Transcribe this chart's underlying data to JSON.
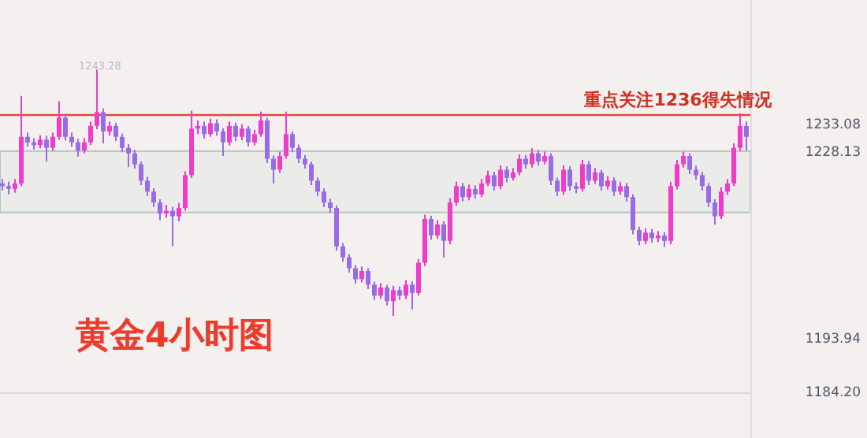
{
  "chart_data": {
    "type": "candlestick",
    "title": "黄金4小时图",
    "annotations": [
      "1243.28",
      "重点关注1236得失情况"
    ],
    "colors": [
      "#9a6be6",
      "#9a6be6",
      "#f03cc8",
      "#f03cc8",
      "#9a6be6",
      "#9a6be6",
      "#f03cc8",
      "#9a6be6",
      "#f03cc8",
      "#f03cc8",
      "#9a6be6",
      "#9a6be6",
      "#9a6be6",
      "#f03cc8",
      "#f03cc8",
      "#f03cc8",
      "#9a6be6",
      "#f03cc8",
      "#9a6be6",
      "#9a6be6",
      "#9a6be6",
      "#9a6be6",
      "#9a6be6",
      "#9a6be6",
      "#9a6be6",
      "#9a6be6",
      "#f03cc8",
      "#9a6be6",
      "#f03cc8",
      "#f03cc8",
      "#f03cc8",
      "#f03cc8",
      "#9a6be6",
      "#f03cc8",
      "#9a6be6",
      "#9a6be6",
      "#f03cc8",
      "#9a6be6",
      "#f03cc8",
      "#9a6be6",
      "#f03cc8",
      "#f03cc8",
      "#9a6be6",
      "#9a6be6",
      "#f03cc8",
      "#f03cc8",
      "#9a6be6",
      "#9a6be6",
      "#9a6be6",
      "#9a6be6",
      "#9a6be6",
      "#9a6be6",
      "#9a6be6",
      "#9a6be6",
      "#9a6be6",
      "#9a6be6",
      "#9a6be6",
      "#f03cc8",
      "#9a6be6",
      "#9a6be6",
      "#f03cc8",
      "#9a6be6",
      "#f03cc8",
      "#9a6be6",
      "#f03cc8",
      "#9a6be6",
      "#f03cc8",
      "#f03cc8",
      "#9a6be6",
      "#f03cc8",
      "#9a6be6",
      "#f03cc8",
      "#f03cc8",
      "#9a6be6",
      "#f03cc8",
      "#9a6be6",
      "#f03cc8",
      "#f03cc8",
      "#9a6be6",
      "#f03cc8",
      "#9a6be6",
      "#f03cc8",
      "#f03cc8",
      "#9a6be6",
      "#f03cc8",
      "#9a6be6",
      "#f03cc8",
      "#9a6be6",
      "#9a6be6",
      "#f03cc8",
      "#9a6be6",
      "#9a6be6",
      "#f03cc8",
      "#9a6be6",
      "#f03cc8",
      "#9a6be6",
      "#f03cc8",
      "#9a6be6",
      "#f03cc8",
      "#9a6be6",
      "#9a6be6",
      "#9a6be6",
      "#f03cc8",
      "#9a6be6",
      "#f03cc8",
      "#9a6be6",
      "#f03cc8",
      "#f03cc8",
      "#f03cc8",
      "#9a6be6",
      "#9a6be6",
      "#9a6be6",
      "#9a6be6",
      "#9a6be6",
      "#f03cc8",
      "#f03cc8",
      "#f03cc8",
      "#f03cc8",
      "#9a6be6"
    ],
    "ylim": [
      1176,
      1256
    ],
    "yticks": [
      1233.08,
      1228.13,
      1193.94,
      {
        "value": 1184.2,
        "label": "1184.20"
      }
    ],
    "ref_lines": [
      {
        "axis": "y",
        "value": 1235,
        "color": "#e04a3a"
      },
      {
        "axis": "y",
        "value": 1184.2,
        "color": "#d8dcea"
      }
    ],
    "bands": [
      {
        "axis": "y",
        "from": 1217.2,
        "to": 1228.4,
        "color": "#dfe7e1"
      }
    ],
    "categories": [
      null,
      null,
      null,
      null,
      null,
      null,
      null,
      null,
      null,
      null,
      null,
      null,
      null,
      null,
      null,
      null,
      null,
      null,
      null,
      null,
      null,
      null,
      null,
      null,
      null,
      null,
      null,
      null,
      null,
      null,
      null,
      null,
      null,
      null,
      null,
      null,
      null,
      null,
      null,
      null,
      null,
      null,
      null,
      null,
      null,
      null,
      null,
      null,
      null,
      null,
      null,
      null,
      null,
      null,
      null,
      null,
      null,
      null,
      null,
      null,
      null,
      null,
      null,
      null,
      null,
      null,
      null,
      null,
      null,
      null,
      null,
      null,
      null,
      null,
      null,
      null,
      null,
      null,
      null,
      null,
      null,
      null,
      null,
      null,
      null,
      null,
      null,
      null,
      null,
      null,
      null,
      null,
      null,
      null,
      null,
      null,
      null,
      null,
      null,
      null,
      null,
      null,
      null,
      null,
      null,
      null,
      null,
      null,
      null,
      null,
      null,
      null,
      null,
      null,
      null,
      null,
      null,
      null,
      null
    ],
    "ohlc": [
      [
        1222.5,
        1223.3,
        1221.2,
        1222
      ],
      [
        1222,
        1222.8,
        1220.5,
        1221.5
      ],
      [
        1221.5,
        1223.3,
        1220.8,
        1222.5
      ],
      [
        1222.5,
        1238.5,
        1222,
        1231
      ],
      [
        1231,
        1231.8,
        1229.2,
        1230
      ],
      [
        1230,
        1230.8,
        1228.7,
        1229.5
      ],
      [
        1229.5,
        1231.3,
        1228.9,
        1230.5
      ],
      [
        1230.5,
        1231.2,
        1226.5,
        1229
      ],
      [
        1229,
        1231.8,
        1228.5,
        1231
      ],
      [
        1231,
        1237.5,
        1230.5,
        1234.5
      ],
      [
        1234.5,
        1235.2,
        1230.3,
        1231
      ],
      [
        1231,
        1231.8,
        1229.2,
        1230
      ],
      [
        1230,
        1230.6,
        1227.4,
        1228.5
      ],
      [
        1228.5,
        1230.8,
        1228,
        1230
      ],
      [
        1230,
        1233.8,
        1229.5,
        1233
      ],
      [
        1233,
        1243.28,
        1232.4,
        1235.5
      ],
      [
        1235.5,
        1236.2,
        1229.8,
        1232
      ],
      [
        1232,
        1233.8,
        1231.2,
        1233
      ],
      [
        1233,
        1233.6,
        1230.2,
        1231
      ],
      [
        1231,
        1231.6,
        1228.2,
        1229
      ],
      [
        1229,
        1229.7,
        1225.5,
        1228
      ],
      [
        1228,
        1228.6,
        1225.2,
        1226
      ],
      [
        1226,
        1226.5,
        1222.2,
        1223
      ],
      [
        1223,
        1223.7,
        1220.2,
        1221
      ],
      [
        1221,
        1221.6,
        1218.2,
        1219
      ],
      [
        1219,
        1219.6,
        1215.8,
        1217
      ],
      [
        1217,
        1218.6,
        1216.2,
        1217.5
      ],
      [
        1217.5,
        1218.2,
        1211,
        1216.5
      ],
      [
        1216.5,
        1218.9,
        1215.6,
        1218
      ],
      [
        1218,
        1224.7,
        1217.5,
        1224
      ],
      [
        1224,
        1235.8,
        1223.5,
        1232.5
      ],
      [
        1232.5,
        1234,
        1231.5,
        1233
      ],
      [
        1233,
        1233.8,
        1230.7,
        1231.5
      ],
      [
        1231.5,
        1234.3,
        1231,
        1233.5
      ],
      [
        1233.5,
        1234.2,
        1231.2,
        1232
      ],
      [
        1232,
        1232.6,
        1227.5,
        1230
      ],
      [
        1230,
        1233.8,
        1229.4,
        1233
      ],
      [
        1233,
        1233.6,
        1230.2,
        1231
      ],
      [
        1231,
        1233.3,
        1230.4,
        1232.5
      ],
      [
        1232.5,
        1233,
        1229.2,
        1230
      ],
      [
        1230,
        1232.3,
        1229.4,
        1231.5
      ],
      [
        1231.5,
        1235.6,
        1231,
        1234
      ],
      [
        1234,
        1234.5,
        1226.2,
        1227
      ],
      [
        1227,
        1227.6,
        1222.5,
        1225
      ],
      [
        1225,
        1228.3,
        1224.4,
        1227.5
      ],
      [
        1227.5,
        1235.6,
        1227,
        1231.5
      ],
      [
        1231.5,
        1232,
        1228.2,
        1229
      ],
      [
        1229,
        1229.6,
        1226.2,
        1227
      ],
      [
        1227,
        1227.7,
        1225.2,
        1226
      ],
      [
        1226,
        1226.5,
        1222.2,
        1223
      ],
      [
        1223,
        1223.6,
        1220.2,
        1221
      ],
      [
        1221,
        1221.6,
        1218.2,
        1219
      ],
      [
        1219,
        1219.7,
        1217.2,
        1218
      ],
      [
        1218,
        1218.5,
        1210.2,
        1211
      ],
      [
        1211,
        1211.6,
        1208.2,
        1209
      ],
      [
        1209,
        1209.6,
        1206.2,
        1207
      ],
      [
        1207,
        1207.6,
        1204.2,
        1205
      ],
      [
        1205,
        1207.3,
        1204.4,
        1206.5
      ],
      [
        1206.5,
        1207,
        1203.2,
        1204
      ],
      [
        1204,
        1204.6,
        1201.2,
        1202
      ],
      [
        1202,
        1204.3,
        1201.4,
        1203.5
      ],
      [
        1203.5,
        1204,
        1200.2,
        1201
      ],
      [
        1201,
        1203.8,
        1198.3,
        1203
      ],
      [
        1203,
        1203.7,
        1201.2,
        1202
      ],
      [
        1202,
        1204.8,
        1201.4,
        1204
      ],
      [
        1204,
        1204.6,
        1199.5,
        1202.5
      ],
      [
        1202.5,
        1208.7,
        1202,
        1208
      ],
      [
        1208,
        1216.8,
        1207.4,
        1216
      ],
      [
        1216,
        1216.6,
        1212.2,
        1213
      ],
      [
        1213,
        1215.8,
        1212.4,
        1215
      ],
      [
        1215,
        1215.6,
        1209,
        1212
      ],
      [
        1212,
        1219.8,
        1211.4,
        1219
      ],
      [
        1219,
        1222.8,
        1218.4,
        1222
      ],
      [
        1222,
        1222.6,
        1219.2,
        1220
      ],
      [
        1220,
        1222.3,
        1219.4,
        1221.5
      ],
      [
        1221.5,
        1222.2,
        1219.7,
        1220.5
      ],
      [
        1220.5,
        1223.3,
        1220,
        1222.5
      ],
      [
        1222.5,
        1224.8,
        1222,
        1224
      ],
      [
        1224,
        1224.6,
        1221.2,
        1222
      ],
      [
        1222,
        1225.8,
        1221.4,
        1225
      ],
      [
        1225,
        1225.6,
        1222.7,
        1223.5
      ],
      [
        1223.5,
        1225.3,
        1223,
        1224.5
      ],
      [
        1224.5,
        1227.8,
        1224,
        1227
      ],
      [
        1227,
        1227.7,
        1225.2,
        1226
      ],
      [
        1226,
        1228.9,
        1225.4,
        1228
      ],
      [
        1228,
        1228.6,
        1225.7,
        1226.5
      ],
      [
        1226.5,
        1228.3,
        1226,
        1227.5
      ],
      [
        1227.5,
        1228,
        1222.2,
        1223
      ],
      [
        1223,
        1223.6,
        1220.2,
        1221
      ],
      [
        1221,
        1225.8,
        1220.4,
        1225
      ],
      [
        1225,
        1225.6,
        1221.2,
        1222
      ],
      [
        1222,
        1222.7,
        1220.7,
        1221.5
      ],
      [
        1221.5,
        1226.8,
        1221,
        1226
      ],
      [
        1226,
        1226.6,
        1222.2,
        1223
      ],
      [
        1223,
        1225.3,
        1222.4,
        1224.5
      ],
      [
        1224.5,
        1225,
        1221.2,
        1222
      ],
      [
        1222,
        1223.8,
        1221.4,
        1223
      ],
      [
        1223,
        1223.6,
        1220.2,
        1221
      ],
      [
        1221,
        1222.8,
        1220.4,
        1222
      ],
      [
        1222,
        1222.6,
        1219.2,
        1220
      ],
      [
        1220,
        1220.5,
        1213.2,
        1214
      ],
      [
        1214,
        1214.6,
        1211.2,
        1212
      ],
      [
        1212,
        1214.3,
        1211.4,
        1213.5
      ],
      [
        1213.5,
        1214.2,
        1211.7,
        1212.5
      ],
      [
        1212.5,
        1213.8,
        1211.8,
        1213
      ],
      [
        1213,
        1213.6,
        1210.9,
        1212
      ],
      [
        1212,
        1222.8,
        1211.4,
        1222
      ],
      [
        1222,
        1226.8,
        1221.4,
        1226
      ],
      [
        1226,
        1228.3,
        1225.4,
        1227.5
      ],
      [
        1227.5,
        1228,
        1224.2,
        1225
      ],
      [
        1225,
        1225.7,
        1223.2,
        1224
      ],
      [
        1224,
        1224.6,
        1221.2,
        1222
      ],
      [
        1222,
        1222.6,
        1218.2,
        1219
      ],
      [
        1219,
        1219.6,
        1215,
        1216.5
      ],
      [
        1216.5,
        1221.8,
        1216,
        1221
      ],
      [
        1221,
        1223.3,
        1220.4,
        1222.5
      ],
      [
        1222.5,
        1229.8,
        1222,
        1229
      ],
      [
        1229,
        1235.3,
        1228.4,
        1233
      ],
      [
        1233,
        1233.8,
        1228.5,
        1231
      ]
    ]
  }
}
